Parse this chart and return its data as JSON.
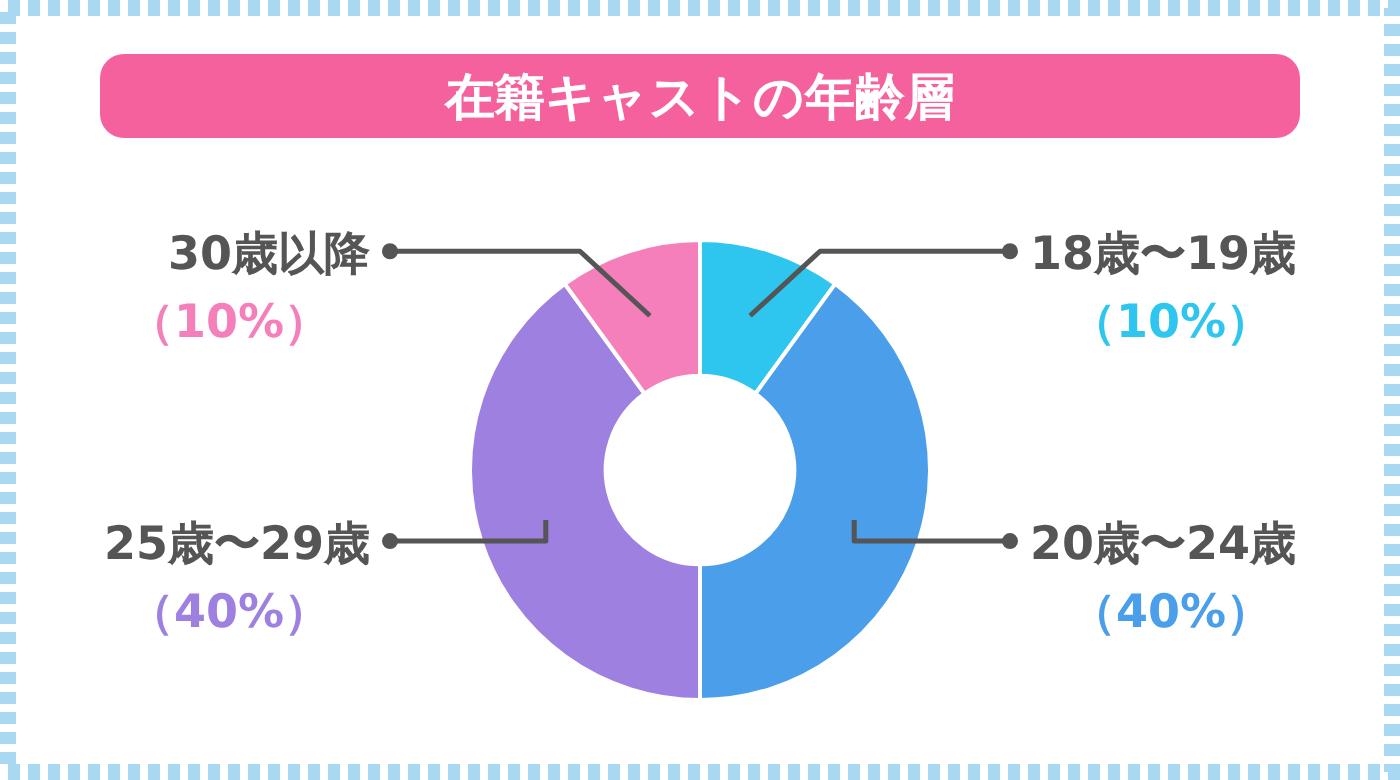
{
  "chart_data": {
    "type": "donut",
    "title": "在籍キャストの年齢層",
    "categories": [
      "18歳〜19歳",
      "20歳〜24歳",
      "25歳〜29歳",
      "30歳以降"
    ],
    "values": [
      10,
      40,
      40,
      10
    ],
    "colors": [
      "#2ec5ef",
      "#4a9eea",
      "#9d80e0",
      "#f47fbb"
    ],
    "value_labels": [
      "（10%）",
      "（40%）",
      "（40%）",
      "（10%）"
    ]
  }
}
